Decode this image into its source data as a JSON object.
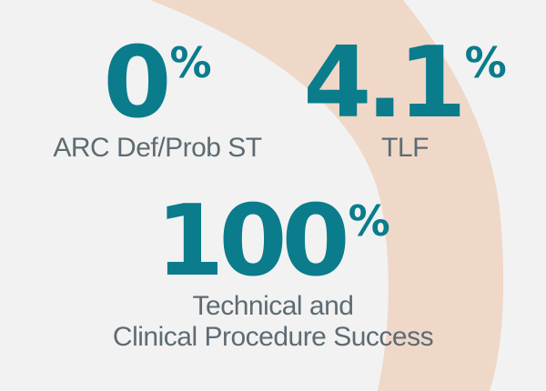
{
  "stats": [
    {
      "value": "0",
      "unit": "%",
      "label_lines": [
        "ARC Def/Prob ST"
      ]
    },
    {
      "value": "4.1",
      "unit": "%",
      "label_lines": [
        "TLF"
      ]
    },
    {
      "value": "100",
      "unit": "%",
      "label_lines": [
        "Technical and",
        "Clinical Procedure Success"
      ]
    }
  ],
  "colors": {
    "background": "#f2f2f2",
    "arc": "#efd8c8",
    "accent": "#0a7c8c",
    "label": "#5e6b73"
  }
}
